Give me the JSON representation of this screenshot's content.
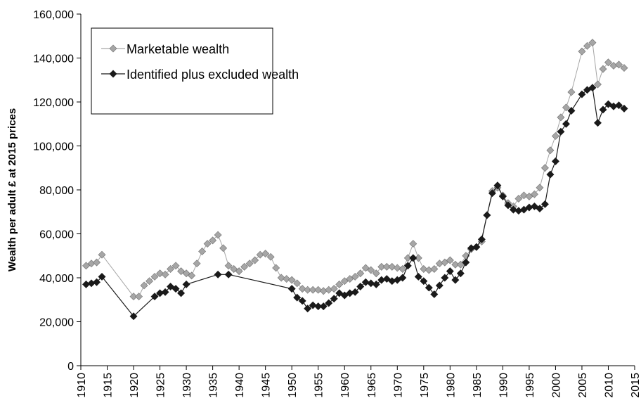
{
  "chart_data": {
    "type": "line",
    "y_label": "Wealth per adult £ at 2015 prices",
    "xlim": [
      1910,
      2015
    ],
    "xticks": [
      1910,
      1915,
      1920,
      1925,
      1930,
      1935,
      1940,
      1945,
      1950,
      1955,
      1960,
      1965,
      1970,
      1975,
      1980,
      1985,
      1990,
      1995,
      2000,
      2005,
      2010,
      2015
    ],
    "ylim": [
      0,
      160000
    ],
    "yticks": [
      0,
      {
        "value": 20000,
        "label": "20,000"
      },
      {
        "value": 40000,
        "label": "40,000"
      },
      {
        "value": 60000,
        "label": "60,000"
      },
      {
        "value": 80000,
        "label": "80,000"
      },
      {
        "value": 100000,
        "label": "100,000"
      },
      {
        "value": 120000,
        "label": "120,000"
      },
      {
        "value": 140000,
        "label": "140,000"
      },
      {
        "value": 160000,
        "label": "160,000"
      }
    ],
    "grid": false,
    "legend": "upper left",
    "series": [
      {
        "name": "Marketable wealth",
        "color": "#a6a6a6",
        "x": [
          1911,
          1912,
          1913,
          1914,
          1920,
          1921,
          1922,
          1923,
          1924,
          1925,
          1926,
          1927,
          1928,
          1929,
          1930,
          1931,
          1932,
          1933,
          1934,
          1935,
          1936,
          1937,
          1938,
          1939,
          1940,
          1941,
          1942,
          1943,
          1944,
          1945,
          1946,
          1947,
          1948,
          1949,
          1950,
          1951,
          1952,
          1953,
          1954,
          1955,
          1956,
          1957,
          1958,
          1959,
          1960,
          1961,
          1962,
          1963,
          1964,
          1965,
          1966,
          1967,
          1968,
          1969,
          1970,
          1971,
          1972,
          1973,
          1974,
          1975,
          1976,
          1977,
          1978,
          1979,
          1980,
          1981,
          1982,
          1983,
          1984,
          1985,
          1986,
          1987,
          1988,
          1989,
          1990,
          1991,
          1992,
          1993,
          1994,
          1995,
          1996,
          1997,
          1998,
          1999,
          2000,
          2001,
          2002,
          2003,
          2005,
          2006,
          2007,
          2008,
          2009,
          2010,
          2011,
          2012,
          2013
        ],
        "values": [
          45500,
          46500,
          47000,
          50500,
          31500,
          31500,
          36500,
          38500,
          40500,
          42000,
          41500,
          44000,
          45500,
          43000,
          42000,
          41000,
          46500,
          52000,
          55500,
          57000,
          59500,
          53500,
          45500,
          44000,
          43000,
          45000,
          46500,
          48000,
          50500,
          51000,
          49500,
          44500,
          40000,
          39500,
          39000,
          37500,
          35000,
          34500,
          34500,
          34500,
          34000,
          34500,
          35000,
          37000,
          38500,
          39500,
          40500,
          42000,
          44500,
          43500,
          42000,
          45000,
          45000,
          45000,
          44500,
          44000,
          49000,
          55500,
          49000,
          44000,
          43500,
          44000,
          46500,
          47000,
          48000,
          46000,
          46000,
          50000,
          53000,
          54000,
          56500,
          68500,
          79500,
          81000,
          77500,
          74000,
          72500,
          76000,
          77500,
          77000,
          78000,
          81000,
          90000,
          98000,
          104500,
          113000,
          117500,
          124500,
          143000,
          145500,
          147000,
          128000,
          135000,
          138000,
          136500,
          137000,
          135500
        ]
      },
      {
        "name": "Identified plus excluded wealth",
        "color": "#1a1a1a",
        "x": [
          1911,
          1912,
          1913,
          1914,
          1920,
          1924,
          1925,
          1926,
          1927,
          1928,
          1929,
          1930,
          1936,
          1938,
          1950,
          1951,
          1952,
          1953,
          1954,
          1955,
          1956,
          1957,
          1958,
          1959,
          1960,
          1961,
          1962,
          1963,
          1964,
          1965,
          1966,
          1967,
          1968,
          1969,
          1970,
          1971,
          1972,
          1973,
          1974,
          1975,
          1976,
          1977,
          1978,
          1979,
          1980,
          1981,
          1982,
          1983,
          1984,
          1985,
          1986,
          1987,
          1988,
          1989,
          1990,
          1991,
          1992,
          1993,
          1994,
          1995,
          1996,
          1997,
          1998,
          1999,
          2000,
          2001,
          2002,
          2003,
          2005,
          2006,
          2007,
          2008,
          2009,
          2010,
          2011,
          2012,
          2013
        ],
        "values": [
          37000,
          37500,
          38000,
          40500,
          22500,
          31500,
          33000,
          33500,
          36000,
          35000,
          33000,
          37000,
          41500,
          41500,
          35000,
          31000,
          29500,
          26000,
          27500,
          27000,
          27000,
          28500,
          30500,
          33000,
          32000,
          33000,
          33500,
          36000,
          38000,
          37500,
          37000,
          39000,
          39500,
          38500,
          39000,
          40000,
          45500,
          49000,
          40500,
          38500,
          35500,
          32500,
          36500,
          40000,
          43000,
          39000,
          42000,
          47000,
          53500,
          54000,
          57500,
          68500,
          78500,
          82000,
          77000,
          73000,
          71000,
          70500,
          71000,
          72000,
          72500,
          71500,
          73500,
          87000,
          93000,
          106500,
          110000,
          116000,
          123500,
          125500,
          126500,
          110500,
          116500,
          119000,
          118000,
          118500,
          117000
        ]
      }
    ]
  }
}
